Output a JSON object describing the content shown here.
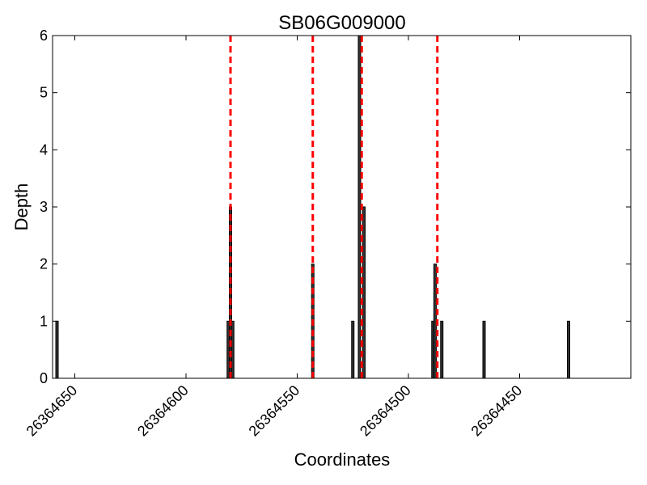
{
  "chart_data": {
    "type": "bar",
    "title": "SB06G009000",
    "xlabel": "Coordinates",
    "ylabel": "Depth",
    "xlim": [
      26364660,
      26364400
    ],
    "ylim": [
      0,
      6
    ],
    "xticks": [
      26364650,
      26364600,
      26364550,
      26364500,
      26364450
    ],
    "xtick_labels": [
      "26364650",
      "26364600",
      "26364550",
      "26364500",
      "26364450"
    ],
    "yticks": [
      0,
      1,
      2,
      3,
      4,
      5,
      6
    ],
    "ytick_labels": [
      "0",
      "1",
      "2",
      "3",
      "4",
      "5",
      "6"
    ],
    "grid": false,
    "bars": [
      {
        "x": 26364658,
        "value": 1
      },
      {
        "x": 26364581,
        "value": 1
      },
      {
        "x": 26364580,
        "value": 3
      },
      {
        "x": 26364579,
        "value": 1
      },
      {
        "x": 26364543,
        "value": 2
      },
      {
        "x": 26364525,
        "value": 1
      },
      {
        "x": 26364522,
        "value": 6
      },
      {
        "x": 26364520,
        "value": 3
      },
      {
        "x": 26364489,
        "value": 1
      },
      {
        "x": 26364488,
        "value": 2
      },
      {
        "x": 26364485,
        "value": 1
      },
      {
        "x": 26364466,
        "value": 1
      },
      {
        "x": 26364428,
        "value": 1
      }
    ],
    "reference_lines": [
      {
        "x": 26364580,
        "color": "#ff0000",
        "style": "dashed"
      },
      {
        "x": 26364543,
        "color": "#ff0000",
        "style": "dashed"
      },
      {
        "x": 26364521,
        "color": "#ff0000",
        "style": "dashed"
      },
      {
        "x": 26364487,
        "color": "#ff0000",
        "style": "dashed"
      }
    ],
    "bar_fill": "#333333",
    "bar_edge": "#000000"
  }
}
